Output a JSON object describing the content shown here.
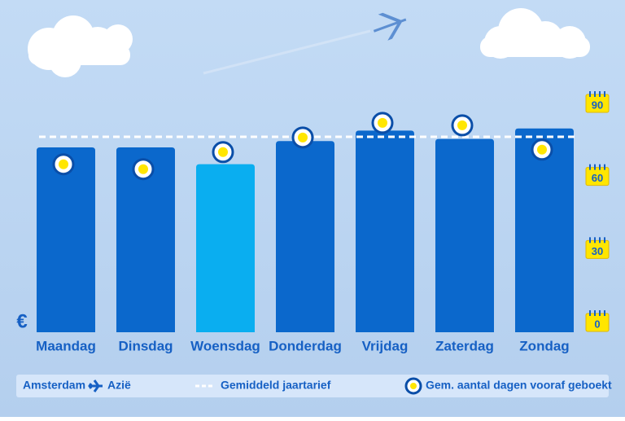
{
  "chart_data": {
    "type": "bar",
    "categories": [
      "Maandag",
      "Dinsdag",
      "Woensdag",
      "Donderdag",
      "Vrijdag",
      "Zaterdag",
      "Zondag"
    ],
    "values": [
      88,
      88,
      80,
      91,
      96,
      92,
      97
    ],
    "colors": [
      "#0b68cc",
      "#0b68cc",
      "#0aaef0",
      "#0b68cc",
      "#0b68cc",
      "#0b68cc",
      "#0b68cc"
    ],
    "ylim": [
      0,
      100
    ],
    "y_label": "€",
    "average_line": {
      "name": "Gemiddeld jaartarief",
      "value": 93,
      "color": "#ffffff"
    },
    "dots": {
      "name": "Gem. aantal dagen vooraf geboekt",
      "axis": "y2",
      "color": "#ffe600",
      "values": [
        65,
        63,
        70,
        76,
        82,
        81,
        71
      ]
    },
    "y2lim": [
      0,
      90
    ],
    "y2ticks": [
      0,
      30,
      60,
      90
    ],
    "route": {
      "from": "Amsterdam",
      "to": "Azië"
    }
  }
}
